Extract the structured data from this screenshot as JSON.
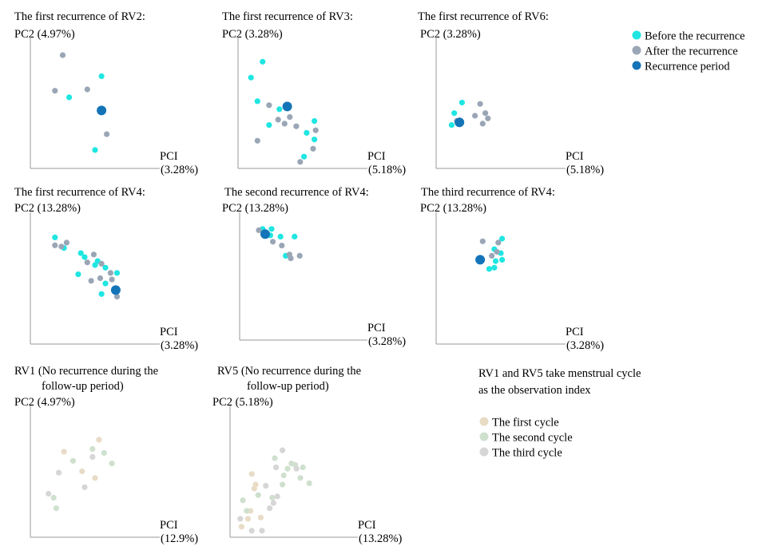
{
  "colors": {
    "before": "#1fe6e2",
    "after": "#9aa6b6",
    "period": "#1474b8",
    "cycle1": "#e8dcc6",
    "cycle2": "#cfe0cf",
    "cycle3": "#d6d6d6",
    "axis": "#999999"
  },
  "legend_top": {
    "items": [
      {
        "label": "Before the recurrence",
        "color_key": "before"
      },
      {
        "label": "After the recurrence",
        "color_key": "after"
      },
      {
        "label": "Recurrence period",
        "color_key": "period"
      }
    ]
  },
  "legend_bottom": {
    "note_line1": "RV1 and RV5 take menstrual cycle",
    "note_line2": "as the observation index",
    "items": [
      {
        "label": "The first cycle",
        "color_key": "cycle1"
      },
      {
        "label": "The second cycle",
        "color_key": "cycle2"
      },
      {
        "label": "The third cycle",
        "color_key": "cycle3"
      }
    ]
  },
  "chart_data": [
    {
      "type": "scatter",
      "title": [
        "The first recurrence of RV2:"
      ],
      "ylabel": "PC2 (4.97%)",
      "xlabel": [
        "PCI",
        "(3.28%)"
      ],
      "xlim": [
        0,
        1
      ],
      "ylim": [
        0,
        1
      ],
      "grid": false,
      "series": [
        {
          "key": "before",
          "points": [
            [
              0.55,
              0.7
            ],
            [
              0.3,
              0.54
            ],
            [
              0.5,
              0.14
            ]
          ]
        },
        {
          "key": "after",
          "points": [
            [
              0.25,
              0.86
            ],
            [
              0.19,
              0.59
            ],
            [
              0.44,
              0.6
            ],
            [
              0.59,
              0.26
            ]
          ]
        },
        {
          "key": "period",
          "points": [
            [
              0.55,
              0.44
            ]
          ]
        }
      ]
    },
    {
      "type": "scatter",
      "title": [
        "The first recurrence of RV3:"
      ],
      "ylabel": "PC2 (3.28%)",
      "xlabel": [
        "PCI",
        "(5.18%)"
      ],
      "xlim": [
        0,
        1
      ],
      "ylim": [
        0,
        1
      ],
      "grid": false,
      "series": [
        {
          "key": "before",
          "points": [
            [
              0.19,
              0.81
            ],
            [
              0.1,
              0.69
            ],
            [
              0.15,
              0.51
            ],
            [
              0.32,
              0.45
            ],
            [
              0.24,
              0.33
            ],
            [
              0.59,
              0.36
            ],
            [
              0.53,
              0.27
            ],
            [
              0.59,
              0.22
            ],
            [
              0.51,
              0.09
            ]
          ]
        },
        {
          "key": "after",
          "points": [
            [
              0.24,
              0.48
            ],
            [
              0.31,
              0.37
            ],
            [
              0.4,
              0.39
            ],
            [
              0.36,
              0.34
            ],
            [
              0.45,
              0.32
            ],
            [
              0.6,
              0.29
            ],
            [
              0.15,
              0.21
            ],
            [
              0.58,
              0.15
            ],
            [
              0.48,
              0.05
            ]
          ]
        },
        {
          "key": "period",
          "points": [
            [
              0.38,
              0.47
            ]
          ]
        }
      ]
    },
    {
      "type": "scatter",
      "title": [
        "The first recurrence of RV6:"
      ],
      "ylabel": "PC2 (3.28%)",
      "xlabel": [
        "PCI",
        "(5.18%)"
      ],
      "xlim": [
        0,
        1
      ],
      "ylim": [
        0,
        1
      ],
      "grid": false,
      "series": [
        {
          "key": "before",
          "points": [
            [
              0.2,
              0.5
            ],
            [
              0.14,
              0.42
            ],
            [
              0.12,
              0.33
            ]
          ]
        },
        {
          "key": "after",
          "points": [
            [
              0.34,
              0.49
            ],
            [
              0.38,
              0.42
            ],
            [
              0.4,
              0.38
            ],
            [
              0.36,
              0.34
            ],
            [
              0.16,
              0.36
            ],
            [
              0.3,
              0.4
            ]
          ]
        },
        {
          "key": "period",
          "points": [
            [
              0.18,
              0.35
            ]
          ]
        }
      ]
    },
    {
      "type": "scatter",
      "title": [
        "The first recurrence of RV4:"
      ],
      "ylabel": "PC2 (13.28%)",
      "xlabel": [
        "PCI",
        "(3.28%)"
      ],
      "xlim": [
        0,
        1
      ],
      "ylim": [
        0,
        1
      ],
      "grid": false,
      "series": [
        {
          "key": "before",
          "points": [
            [
              0.19,
              0.81
            ],
            [
              0.26,
              0.73
            ],
            [
              0.39,
              0.69
            ],
            [
              0.42,
              0.66
            ],
            [
              0.52,
              0.63
            ],
            [
              0.5,
              0.6
            ],
            [
              0.58,
              0.58
            ],
            [
              0.37,
              0.53
            ],
            [
              0.67,
              0.54
            ],
            [
              0.58,
              0.46
            ],
            [
              0.55,
              0.38
            ]
          ]
        },
        {
          "key": "after",
          "points": [
            [
              0.19,
              0.75
            ],
            [
              0.24,
              0.74
            ],
            [
              0.28,
              0.77
            ],
            [
              0.44,
              0.62
            ],
            [
              0.49,
              0.68
            ],
            [
              0.55,
              0.61
            ],
            [
              0.54,
              0.5
            ],
            [
              0.62,
              0.54
            ],
            [
              0.63,
              0.49
            ],
            [
              0.47,
              0.48
            ],
            [
              0.67,
              0.36
            ]
          ]
        },
        {
          "key": "period",
          "points": [
            [
              0.66,
              0.41
            ]
          ]
        }
      ]
    },
    {
      "type": "scatter",
      "title": [
        "The second recurrence of RV4:"
      ],
      "ylabel": "PC2 (13.28%)",
      "xlabel": [
        "PCI",
        "(3.28%)"
      ],
      "xlim": [
        0,
        1
      ],
      "ylim": [
        0,
        1
      ],
      "grid": false,
      "series": [
        {
          "key": "before",
          "points": [
            [
              0.18,
              0.87
            ],
            [
              0.25,
              0.87
            ],
            [
              0.24,
              0.82
            ],
            [
              0.32,
              0.81
            ],
            [
              0.43,
              0.81
            ],
            [
              0.36,
              0.66
            ]
          ]
        },
        {
          "key": "after",
          "points": [
            [
              0.15,
              0.86
            ],
            [
              0.26,
              0.77
            ],
            [
              0.33,
              0.74
            ],
            [
              0.39,
              0.67
            ],
            [
              0.4,
              0.64
            ],
            [
              0.47,
              0.66
            ]
          ]
        },
        {
          "key": "period",
          "points": [
            [
              0.2,
              0.83
            ]
          ]
        }
      ]
    },
    {
      "type": "scatter",
      "title": [
        "The third recurrence of RV4:"
      ],
      "ylabel": "PC2 (13.28%)",
      "xlabel": [
        "PCI",
        "(3.28%)"
      ],
      "xlim": [
        0,
        1
      ],
      "ylim": [
        0,
        1
      ],
      "grid": false,
      "series": [
        {
          "key": "before",
          "points": [
            [
              0.51,
              0.8
            ],
            [
              0.45,
              0.72
            ],
            [
              0.5,
              0.69
            ],
            [
              0.46,
              0.63
            ],
            [
              0.51,
              0.64
            ],
            [
              0.45,
              0.58
            ],
            [
              0.41,
              0.57
            ]
          ]
        },
        {
          "key": "after",
          "points": [
            [
              0.36,
              0.78
            ],
            [
              0.48,
              0.77
            ],
            [
              0.43,
              0.67
            ],
            [
              0.47,
              0.7
            ]
          ]
        },
        {
          "key": "period",
          "points": [
            [
              0.34,
              0.64
            ]
          ]
        }
      ]
    },
    {
      "type": "scatter",
      "title": [
        "RV1 (No recurrence during the",
        "follow-up period)"
      ],
      "ylabel": "PC2 (4.97%)",
      "xlabel": [
        "PCI",
        "(12.9%)"
      ],
      "xlim": [
        0,
        1
      ],
      "ylim": [
        0,
        1
      ],
      "grid": false,
      "series": [
        {
          "key": "cycle1",
          "points": [
            [
              0.26,
              0.65
            ],
            [
              0.53,
              0.74
            ],
            [
              0.4,
              0.5
            ],
            [
              0.5,
              0.45
            ]
          ]
        },
        {
          "key": "cycle2",
          "points": [
            [
              0.48,
              0.67
            ],
            [
              0.63,
              0.56
            ],
            [
              0.18,
              0.3
            ],
            [
              0.2,
              0.22
            ],
            [
              0.33,
              0.58
            ],
            [
              0.57,
              0.64
            ]
          ]
        },
        {
          "key": "cycle3",
          "points": [
            [
              0.22,
              0.49
            ],
            [
              0.42,
              0.38
            ],
            [
              0.14,
              0.33
            ],
            [
              0.48,
              0.61
            ]
          ]
        }
      ]
    },
    {
      "type": "scatter",
      "title": [
        "RV5 (No recurrence during the",
        "follow-up period)"
      ],
      "ylabel": "PC2 (5.18%)",
      "xlabel": [
        "PCI",
        "(13.28%)"
      ],
      "xlim": [
        0,
        1
      ],
      "ylim": [
        0,
        1
      ],
      "grid": false,
      "series": [
        {
          "key": "cycle1",
          "points": [
            [
              0.17,
              0.48
            ],
            [
              0.19,
              0.37
            ],
            [
              0.16,
              0.2
            ],
            [
              0.14,
              0.14
            ],
            [
              0.24,
              0.15
            ],
            [
              0.09,
              0.08
            ],
            [
              0.2,
              0.4
            ]
          ]
        },
        {
          "key": "cycle2",
          "points": [
            [
              0.35,
              0.6
            ],
            [
              0.45,
              0.52
            ],
            [
              0.51,
              0.55
            ],
            [
              0.57,
              0.53
            ],
            [
              0.55,
              0.45
            ],
            [
              0.62,
              0.41
            ],
            [
              0.41,
              0.4
            ],
            [
              0.33,
              0.3
            ],
            [
              0.1,
              0.28
            ],
            [
              0.13,
              0.2
            ],
            [
              0.22,
              0.32
            ],
            [
              0.42,
              0.47
            ],
            [
              0.48,
              0.56
            ]
          ]
        },
        {
          "key": "cycle3",
          "points": [
            [
              0.41,
              0.66
            ],
            [
              0.36,
              0.53
            ],
            [
              0.28,
              0.39
            ],
            [
              0.31,
              0.22
            ],
            [
              0.25,
              0.05
            ],
            [
              0.17,
              0.05
            ],
            [
              0.08,
              0.14
            ],
            [
              0.34,
              0.26
            ],
            [
              0.37,
              0.31
            ],
            [
              0.52,
              0.52
            ]
          ]
        }
      ]
    }
  ]
}
